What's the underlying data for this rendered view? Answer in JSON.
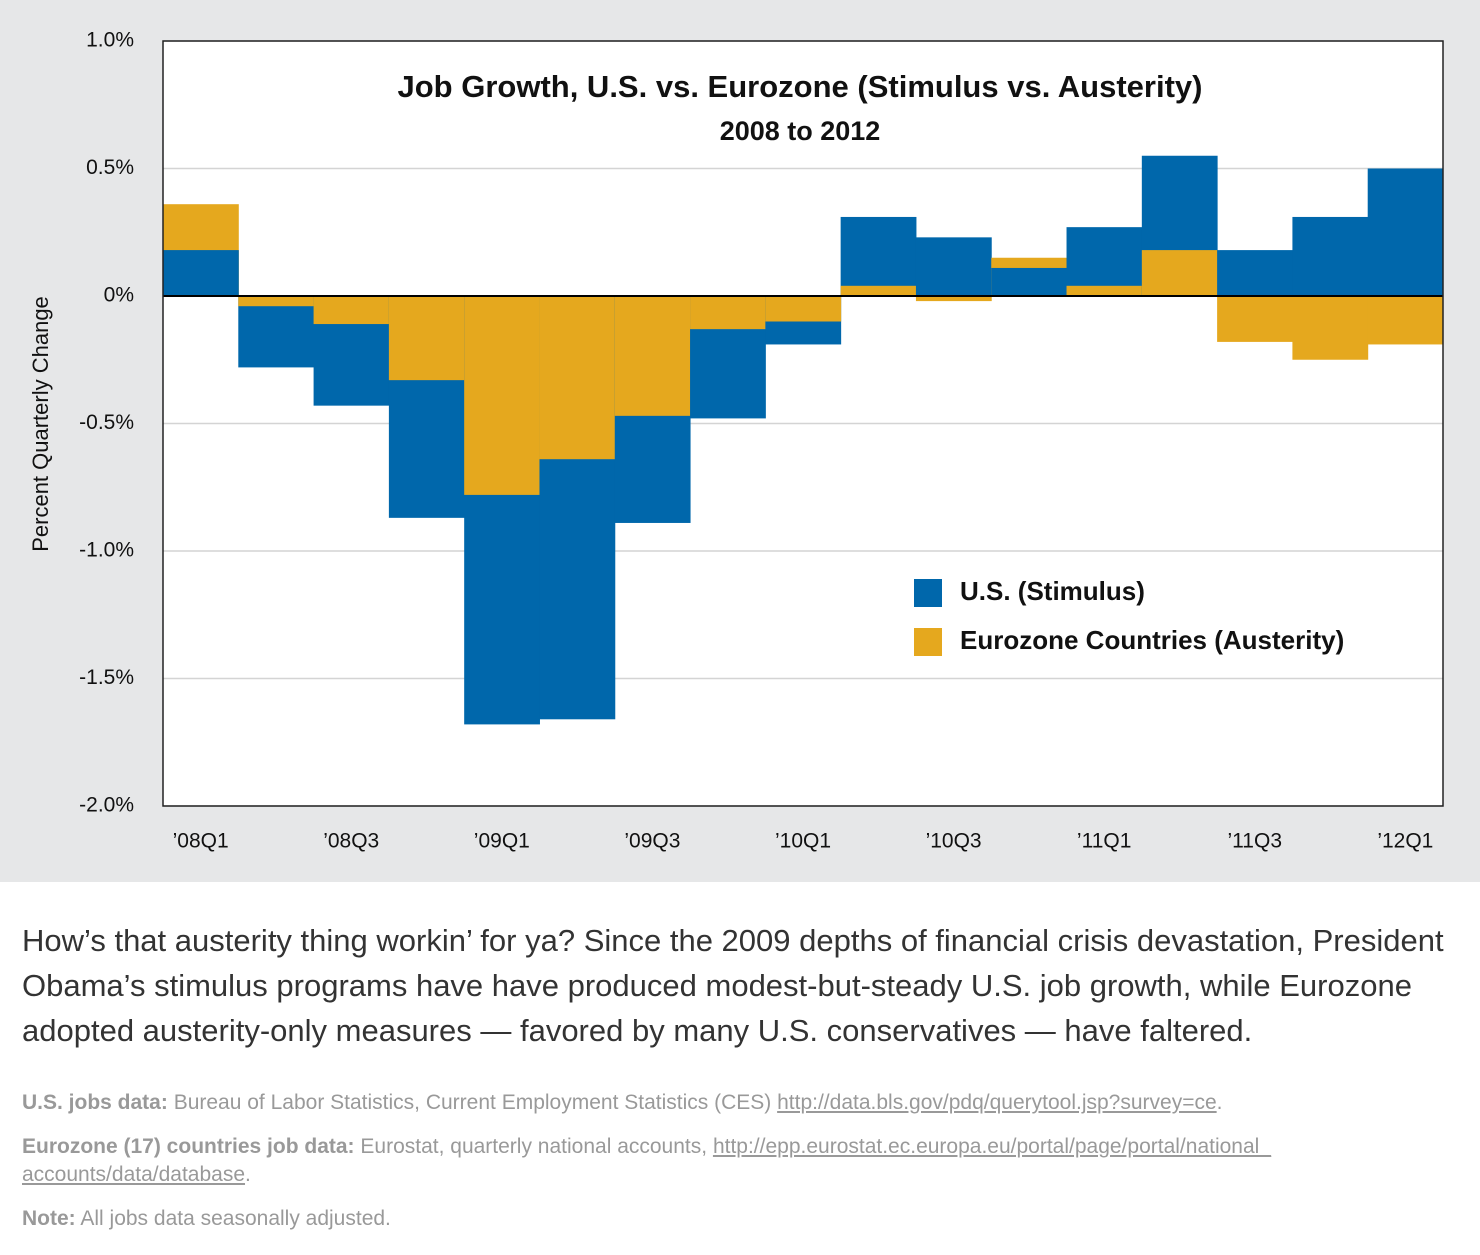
{
  "chart_data": {
    "type": "bar",
    "title": "Job Growth, U.S. vs. Eurozone (Stimulus vs. Austerity)",
    "subtitle": "2008 to 2012",
    "y_label": "Percent Quarterly Change",
    "categories": [
      "’08Q1",
      null,
      "’08Q3",
      null,
      "’09Q1",
      null,
      "’09Q3",
      null,
      "’10Q1",
      null,
      "’10Q3",
      null,
      "’11Q1",
      null,
      "’11Q3",
      null,
      "’12Q1"
    ],
    "series": [
      {
        "name": "U.S. (Stimulus)",
        "color": "#0067ab",
        "values": [
          0.18,
          -0.28,
          -0.43,
          -0.87,
          -1.68,
          -1.66,
          -0.89,
          -0.48,
          -0.19,
          0.31,
          0.23,
          0.11,
          0.27,
          0.55,
          0.18,
          0.31,
          0.5
        ]
      },
      {
        "name": "Eurozone Countries (Austerity)",
        "color": "#e5a81e",
        "values": [
          0.36,
          -0.04,
          -0.11,
          -0.33,
          -0.78,
          -0.64,
          -0.47,
          -0.13,
          -0.1,
          0.04,
          -0.02,
          0.15,
          0.04,
          0.18,
          -0.18,
          -0.25,
          -0.19
        ]
      }
    ],
    "ylim": [
      -2.0,
      1.0
    ],
    "yticks": [
      {
        "value": 1.0,
        "label": "1.0%"
      },
      {
        "value": 0.5,
        "label": "0.5%"
      },
      {
        "value": 0,
        "label": "0%"
      },
      {
        "value": -0.5,
        "label": "-0.5%"
      },
      {
        "value": -1.0,
        "label": "-1.0%"
      },
      {
        "value": -1.5,
        "label": "-1.5%"
      },
      {
        "value": -2.0,
        "label": "-2.0%"
      }
    ],
    "grid": true,
    "legend": "lower-right"
  },
  "caption": "How’s that austerity thing workin’ for ya? Since the 2009 depths of financial crisis devastation, President Obama’s stimulus programs have have produced modest-but-steady U.S. job growth, while Eurozone adopted austerity-only measures — favored by many U.S. conservatives — have faltered.",
  "sources": [
    {
      "label": "U.S. jobs data:",
      "text": "Bureau of Labor Statistics, Current Employment Statistics (CES)",
      "link": "http://data.bls.gov/pdq/querytool.jsp?survey=ce",
      "end": "."
    },
    {
      "label": "Eurozone (17) countries job data:",
      "text": "Eurostat, quarterly national accounts,",
      "link": "http://epp.eurostat.ec.europa.eu/portal/page/portal/national_ accounts/data/database",
      "end": "."
    }
  ],
  "note": {
    "label": "Note:",
    "text": "All jobs data seasonally adjusted."
  }
}
